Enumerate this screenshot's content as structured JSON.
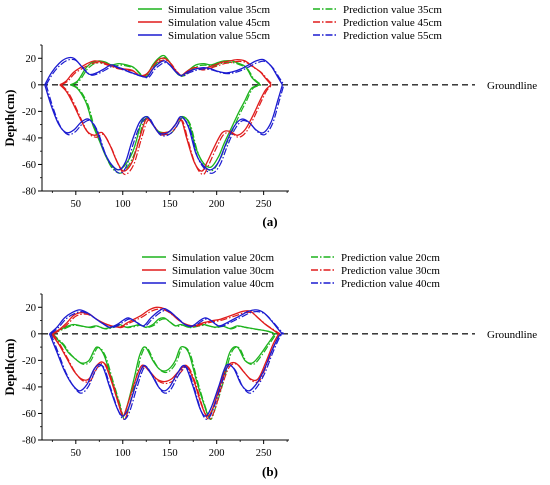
{
  "chart_data": [
    {
      "type": "line",
      "caption": "(a)",
      "xlabel": "",
      "ylabel": "Depth(cm)",
      "xlim": [
        14,
        277
      ],
      "ylim": [
        -80,
        30
      ],
      "yticks": [
        -80,
        -60,
        -40,
        -20,
        0,
        20
      ],
      "xticks": [
        50,
        100,
        150,
        200,
        250
      ],
      "ground_line": {
        "label": "Groundline",
        "y": 0
      },
      "legend": "top-center",
      "grid": false,
      "colors": [
        "#1db31d",
        "#e01b1b",
        "#1b1bd0"
      ],
      "series": [
        {
          "name": "Simulation value 35cm",
          "kind": "simulation",
          "color": "#1db31d",
          "x": [
            44,
            52,
            60,
            64,
            68,
            75,
            82,
            88,
            96,
            104,
            112,
            120,
            126,
            132,
            138,
            144,
            150,
            156,
            162,
            170,
            178,
            186,
            194,
            202,
            208,
            216,
            224,
            230,
            234,
            238,
            246
          ],
          "top": [
            0,
            3,
            12,
            15,
            17,
            18,
            17,
            15,
            16,
            15,
            13,
            7,
            8,
            15,
            20,
            22,
            17,
            10,
            7,
            11,
            15,
            16,
            15,
            17,
            18,
            18,
            16,
            14,
            10,
            5,
            0
          ],
          "bottom": [
            0,
            -3,
            -12,
            -20,
            -30,
            -42,
            -54,
            -61,
            -64,
            -59,
            -48,
            -28,
            -24,
            -30,
            -35,
            -36,
            -35,
            -30,
            -24,
            -28,
            -48,
            -59,
            -62,
            -54,
            -44,
            -32,
            -20,
            -12,
            -6,
            -2,
            0
          ]
        },
        {
          "name": "Simulation value 45cm",
          "kind": "simulation",
          "color": "#e01b1b",
          "x": [
            33,
            40,
            47,
            55,
            62,
            70,
            78,
            86,
            94,
            101,
            110,
            118,
            125,
            132,
            138,
            144,
            150,
            156,
            162,
            168,
            176,
            184,
            190,
            198,
            206,
            214,
            222,
            230,
            238,
            246,
            252,
            258
          ],
          "top": [
            0,
            3,
            9,
            13,
            16,
            18,
            17,
            15,
            13,
            12,
            11,
            7,
            8,
            14,
            19,
            20,
            17,
            11,
            7,
            10,
            13,
            12,
            13,
            15,
            17,
            18,
            19,
            18,
            14,
            10,
            5,
            0
          ],
          "bottom": [
            0,
            -5,
            -14,
            -26,
            -35,
            -38,
            -36,
            -45,
            -58,
            -65,
            -58,
            -40,
            -26,
            -30,
            -36,
            -36,
            -35,
            -30,
            -26,
            -40,
            -58,
            -65,
            -58,
            -46,
            -36,
            -35,
            -38,
            -34,
            -24,
            -12,
            -4,
            0
          ]
        },
        {
          "name": "Simulation value 55cm",
          "kind": "simulation",
          "color": "#1b1bd0",
          "x": [
            17,
            24,
            32,
            40,
            48,
            56,
            64,
            72,
            80,
            88,
            96,
            103,
            110,
            118,
            126,
            132,
            138,
            144,
            150,
            156,
            162,
            170,
            178,
            186,
            194,
            202,
            210,
            218,
            226,
            234,
            242,
            250,
            258,
            265,
            270
          ],
          "top": [
            0,
            9,
            16,
            20,
            20,
            14,
            8,
            9,
            12,
            15,
            13,
            11,
            9,
            7,
            6,
            12,
            16,
            18,
            15,
            10,
            7,
            10,
            12,
            13,
            12,
            10,
            9,
            10,
            12,
            15,
            18,
            19,
            14,
            6,
            0
          ],
          "bottom": [
            0,
            -16,
            -30,
            -36,
            -34,
            -28,
            -26,
            -34,
            -50,
            -60,
            -64,
            -58,
            -42,
            -28,
            -24,
            -30,
            -36,
            -37,
            -35,
            -30,
            -24,
            -32,
            -52,
            -61,
            -64,
            -58,
            -44,
            -32,
            -26,
            -28,
            -34,
            -36,
            -28,
            -12,
            0
          ]
        },
        {
          "name": "Prediction value 35cm",
          "kind": "prediction",
          "color": "#1db31d"
        },
        {
          "name": "Prediction value 45cm",
          "kind": "prediction",
          "color": "#e01b1b"
        },
        {
          "name": "Prediction value 55cm",
          "kind": "prediction",
          "color": "#1b1bd0"
        }
      ]
    },
    {
      "type": "line",
      "caption": "(b)",
      "xlabel": "",
      "ylabel": "Depth(cm)",
      "xlim": [
        14,
        277
      ],
      "ylim": [
        -80,
        30
      ],
      "yticks": [
        -80,
        -60,
        -40,
        -20,
        0,
        20
      ],
      "xticks": [
        50,
        100,
        150,
        200,
        250
      ],
      "ground_line": {
        "label": "Groundline",
        "y": 0
      },
      "legend": "top-center",
      "grid": false,
      "colors": [
        "#1db31d",
        "#e01b1b",
        "#1b1bd0"
      ],
      "series": [
        {
          "name": "Simulation value 20cm",
          "kind": "simulation",
          "color": "#1db31d",
          "x": [
            24,
            30,
            36,
            42,
            48,
            56,
            64,
            72,
            80,
            88,
            96,
            100,
            104,
            112,
            118,
            124,
            132,
            138,
            144,
            150,
            156,
            162,
            170,
            178,
            186,
            192,
            198,
            206,
            214,
            222,
            230,
            238,
            246,
            254,
            262
          ],
          "top": [
            0,
            2,
            4,
            6,
            7,
            6,
            5,
            6,
            4,
            5,
            7,
            6,
            5,
            6,
            7,
            5,
            7,
            11,
            12,
            9,
            6,
            7,
            5,
            6,
            7,
            6,
            5,
            6,
            4,
            6,
            5,
            4,
            3,
            2,
            0
          ],
          "bottom": [
            0,
            -4,
            -8,
            -14,
            -18,
            -22,
            -20,
            -10,
            -16,
            -34,
            -52,
            -62,
            -56,
            -34,
            -16,
            -10,
            -20,
            -26,
            -28,
            -26,
            -20,
            -10,
            -14,
            -34,
            -52,
            -62,
            -52,
            -34,
            -14,
            -10,
            -20,
            -22,
            -16,
            -8,
            0
          ]
        },
        {
          "name": "Simulation value 30cm",
          "kind": "simulation",
          "color": "#e01b1b",
          "x": [
            24,
            32,
            40,
            48,
            56,
            64,
            72,
            80,
            88,
            96,
            100,
            104,
            112,
            120,
            128,
            136,
            144,
            152,
            160,
            168,
            176,
            184,
            190,
            196,
            204,
            212,
            220,
            228,
            236,
            244,
            252,
            260,
            266
          ],
          "top": [
            0,
            3,
            8,
            14,
            16,
            15,
            11,
            8,
            6,
            5,
            6,
            8,
            11,
            14,
            18,
            20,
            19,
            15,
            10,
            7,
            6,
            8,
            9,
            10,
            11,
            13,
            15,
            17,
            17,
            12,
            7,
            3,
            0
          ],
          "bottom": [
            0,
            -8,
            -18,
            -28,
            -34,
            -34,
            -24,
            -22,
            -36,
            -54,
            -62,
            -56,
            -38,
            -24,
            -28,
            -34,
            -36,
            -34,
            -28,
            -24,
            -36,
            -54,
            -62,
            -56,
            -38,
            -24,
            -22,
            -28,
            -34,
            -34,
            -22,
            -8,
            0
          ]
        },
        {
          "name": "Simulation value 40cm",
          "kind": "simulation",
          "color": "#1b1bd0",
          "x": [
            22,
            30,
            38,
            46,
            54,
            62,
            70,
            78,
            86,
            94,
            100,
            106,
            114,
            122,
            130,
            138,
            144,
            150,
            158,
            166,
            174,
            182,
            188,
            194,
            202,
            210,
            218,
            226,
            234,
            242,
            250,
            258,
            266,
            270
          ],
          "top": [
            0,
            5,
            12,
            16,
            18,
            16,
            12,
            8,
            5,
            7,
            10,
            12,
            9,
            6,
            12,
            17,
            19,
            17,
            12,
            7,
            6,
            10,
            12,
            10,
            6,
            8,
            11,
            14,
            17,
            18,
            16,
            10,
            3,
            0
          ],
          "bottom": [
            0,
            -14,
            -28,
            -38,
            -43,
            -38,
            -26,
            -24,
            -40,
            -56,
            -62,
            -56,
            -38,
            -24,
            -30,
            -40,
            -43,
            -40,
            -30,
            -24,
            -38,
            -56,
            -62,
            -56,
            -40,
            -24,
            -26,
            -38,
            -43,
            -38,
            -28,
            -14,
            -2,
            0
          ]
        },
        {
          "name": "Prediction value 20cm",
          "kind": "prediction",
          "color": "#1db31d"
        },
        {
          "name": "Prediction value 30cm",
          "kind": "prediction",
          "color": "#e01b1b"
        },
        {
          "name": "Prediction value 40cm",
          "kind": "prediction",
          "color": "#1b1bd0"
        }
      ]
    }
  ]
}
